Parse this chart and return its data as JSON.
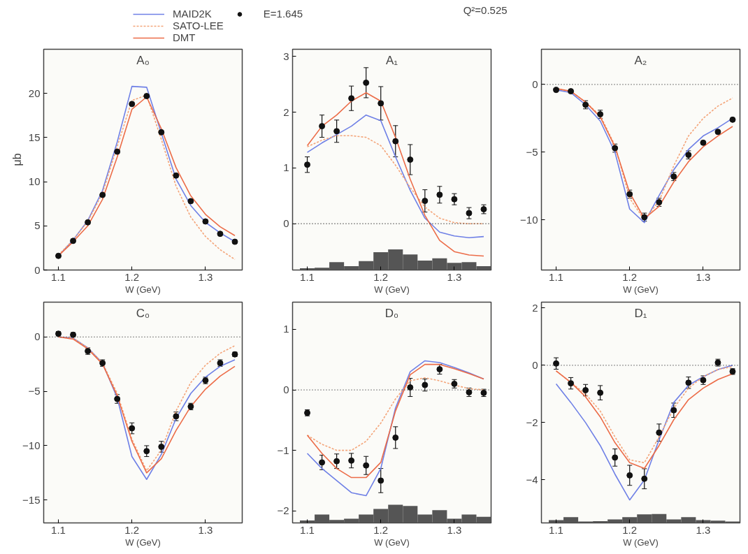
{
  "chart_data": [
    {
      "type": "line",
      "title": "A₀",
      "ylabel": "μb",
      "xlabel": "W (GeV)",
      "legend": "top",
      "annotations": [
        "Q²=0.525"
      ],
      "x": [
        1.1,
        1.12,
        1.14,
        1.16,
        1.18,
        1.2,
        1.22,
        1.24,
        1.26,
        1.28,
        1.3,
        1.32,
        1.34
      ],
      "xlim": [
        1.08,
        1.35
      ],
      "xticks": [
        1.1,
        1.2,
        1.3
      ],
      "ylim": [
        0,
        25
      ],
      "yticks": [
        0,
        5,
        10,
        15,
        20
      ],
      "grid": false,
      "series": [
        {
          "name": "MAID2K",
          "color": "#6f80e6",
          "line_style": "solid",
          "values": [
            1.6,
            3.4,
            5.6,
            9.0,
            14.5,
            20.8,
            20.7,
            15.5,
            10.3,
            7.3,
            5.4,
            4.2,
            3.2
          ]
        },
        {
          "name": "SATO-LEE",
          "color": "#f4a57a",
          "line_style": "dashed",
          "values": [
            1.7,
            3.4,
            5.5,
            8.7,
            14.0,
            19.2,
            19.8,
            14.8,
            9.5,
            6.0,
            3.8,
            2.3,
            1.2
          ]
        },
        {
          "name": "DMT",
          "color": "#ec6c48",
          "line_style": "solid",
          "values": [
            1.6,
            3.2,
            5.0,
            8.0,
            12.8,
            18.2,
            19.6,
            16.0,
            11.6,
            8.4,
            6.3,
            4.9,
            3.9
          ]
        },
        {
          "type": "scatter",
          "name": "E=1.645",
          "color": "#111111",
          "marker": "circle",
          "values": [
            1.6,
            3.3,
            5.4,
            8.5,
            13.4,
            18.8,
            19.7,
            15.6,
            10.7,
            7.8,
            5.5,
            4.1,
            3.2
          ]
        }
      ]
    },
    {
      "type": "line",
      "title": "A₁",
      "xlabel": "W (GeV)",
      "x": [
        1.1,
        1.12,
        1.14,
        1.16,
        1.18,
        1.2,
        1.22,
        1.24,
        1.26,
        1.28,
        1.3,
        1.32,
        1.34
      ],
      "xlim": [
        1.08,
        1.35
      ],
      "xticks": [
        1.1,
        1.2,
        1.3
      ],
      "ylim": [
        -0.83,
        3.13
      ],
      "yticks": [
        0,
        1,
        2,
        3
      ],
      "grid": false,
      "ref_lines": [
        {
          "axis": "y",
          "value": 0,
          "line_style": "dotted",
          "color": "#333333"
        }
      ],
      "series": [
        {
          "color": "#6f80e6",
          "line_style": "solid",
          "values": [
            1.28,
            1.45,
            1.6,
            1.75,
            1.95,
            1.85,
            1.2,
            0.6,
            0.1,
            -0.15,
            -0.22,
            -0.25,
            -0.23
          ]
        },
        {
          "color": "#f4a57a",
          "line_style": "dashed",
          "values": [
            1.38,
            1.5,
            1.58,
            1.58,
            1.55,
            1.4,
            1.05,
            0.65,
            0.3,
            0.1,
            0.02,
            0.0,
            0.0
          ]
        },
        {
          "color": "#ec6c48",
          "line_style": "solid",
          "values": [
            1.4,
            1.75,
            1.95,
            2.2,
            2.35,
            2.2,
            1.55,
            0.8,
            0.15,
            -0.3,
            -0.5,
            -0.56,
            -0.58
          ]
        },
        {
          "type": "scatter",
          "color": "#111111",
          "marker": "circle",
          "values": [
            1.06,
            1.75,
            1.66,
            2.25,
            2.53,
            2.16,
            1.48,
            1.15,
            0.41,
            0.52,
            0.44,
            0.19,
            0.26
          ],
          "errors": [
            0.14,
            0.2,
            0.2,
            0.22,
            0.27,
            0.3,
            0.28,
            0.27,
            0.2,
            0.15,
            0.1,
            0.1,
            0.08
          ]
        },
        {
          "type": "bar",
          "color": "#555555",
          "base": [
            -0.83,
            -0.83,
            -0.83,
            -0.83,
            -0.83,
            -0.83,
            -0.83,
            -0.83,
            -0.83,
            -0.83,
            -0.83,
            -0.83,
            -0.83
          ],
          "values": [
            0.03,
            0.04,
            0.14,
            0.07,
            0.16,
            0.32,
            0.37,
            0.28,
            0.17,
            0.21,
            0.13,
            0.14,
            0.07
          ]
        }
      ]
    },
    {
      "type": "line",
      "title": "A₂",
      "xlabel": "W (GeV)",
      "x": [
        1.1,
        1.12,
        1.14,
        1.16,
        1.18,
        1.2,
        1.22,
        1.24,
        1.26,
        1.28,
        1.3,
        1.32,
        1.34
      ],
      "xlim": [
        1.08,
        1.35
      ],
      "xticks": [
        1.1,
        1.2,
        1.3
      ],
      "ylim": [
        -13.7,
        2.6
      ],
      "yticks": [
        -10,
        -5,
        0
      ],
      "grid": false,
      "ref_lines": [
        {
          "axis": "y",
          "value": 0,
          "line_style": "dotted",
          "color": "#333333"
        }
      ],
      "series": [
        {
          "color": "#6f80e6",
          "line_style": "solid",
          "values": [
            -0.4,
            -0.6,
            -1.5,
            -2.7,
            -5.0,
            -9.2,
            -10.2,
            -8.2,
            -6.3,
            -4.8,
            -3.8,
            -3.2,
            -2.5
          ]
        },
        {
          "color": "#f4a57a",
          "line_style": "dashed",
          "values": [
            -0.3,
            -0.5,
            -1.3,
            -2.3,
            -4.5,
            -8.4,
            -10.0,
            -8.6,
            -6.0,
            -3.8,
            -2.5,
            -1.6,
            -1.0
          ]
        },
        {
          "color": "#ec6c48",
          "line_style": "solid",
          "values": [
            -0.3,
            -0.5,
            -1.3,
            -2.4,
            -4.6,
            -8.0,
            -9.9,
            -9.0,
            -7.2,
            -5.7,
            -4.6,
            -3.8,
            -3.1
          ]
        },
        {
          "type": "scatter",
          "color": "#111111",
          "marker": "circle",
          "values": [
            -0.4,
            -0.5,
            -1.5,
            -2.2,
            -4.7,
            -8.1,
            -9.8,
            -8.7,
            -6.8,
            -5.2,
            -4.3,
            -3.5,
            -2.6
          ],
          "errors": [
            null,
            null,
            0.3,
            0.3,
            0.3,
            0.3,
            0.3,
            0.3,
            0.3,
            0.3,
            null,
            null,
            null
          ]
        }
      ]
    },
    {
      "type": "line",
      "title": "C₀",
      "xlabel": "W (GeV)",
      "x": [
        1.1,
        1.12,
        1.14,
        1.16,
        1.18,
        1.2,
        1.22,
        1.24,
        1.26,
        1.28,
        1.3,
        1.32,
        1.34
      ],
      "xlim": [
        1.08,
        1.35
      ],
      "xticks": [
        1.1,
        1.2,
        1.3
      ],
      "ylim": [
        -17.1,
        3.2
      ],
      "yticks": [
        -15,
        -10,
        -5,
        0
      ],
      "grid": false,
      "ref_lines": [
        {
          "axis": "y",
          "value": 0,
          "line_style": "dotted",
          "color": "#333333"
        }
      ],
      "series": [
        {
          "color": "#6f80e6",
          "line_style": "solid",
          "values": [
            0.0,
            -0.1,
            -1.0,
            -2.4,
            -5.6,
            -11.0,
            -13.1,
            -10.8,
            -7.5,
            -5.2,
            -3.7,
            -2.7,
            -2.1
          ]
        },
        {
          "color": "#f4a57a",
          "line_style": "dashed",
          "values": [
            0.0,
            -0.1,
            -1.0,
            -2.4,
            -5.2,
            -9.4,
            -12.3,
            -10.4,
            -6.8,
            -4.2,
            -2.6,
            -1.5,
            -0.8
          ]
        },
        {
          "color": "#ec6c48",
          "line_style": "solid",
          "values": [
            0.0,
            -0.2,
            -1.1,
            -2.5,
            -5.4,
            -9.6,
            -12.5,
            -11.2,
            -8.6,
            -6.4,
            -4.8,
            -3.6,
            -2.7
          ]
        },
        {
          "type": "scatter",
          "color": "#111111",
          "marker": "circle",
          "values": [
            0.3,
            0.2,
            -1.3,
            -2.4,
            -5.7,
            -8.4,
            -10.5,
            -10.1,
            -7.3,
            -6.4,
            -4.0,
            -2.4,
            -1.6
          ],
          "errors": [
            0.2,
            0.2,
            0.3,
            0.3,
            0.4,
            0.5,
            0.5,
            0.5,
            0.4,
            0.3,
            0.3,
            0.3,
            0.2
          ]
        }
      ]
    },
    {
      "type": "line",
      "title": "D₀",
      "xlabel": "W (GeV)",
      "x": [
        1.1,
        1.12,
        1.14,
        1.16,
        1.18,
        1.2,
        1.22,
        1.24,
        1.26,
        1.28,
        1.3,
        1.32,
        1.34
      ],
      "xlim": [
        1.08,
        1.35
      ],
      "xticks": [
        1.1,
        1.2,
        1.3
      ],
      "ylim": [
        -2.2,
        1.45
      ],
      "yticks": [
        -2,
        -1,
        0,
        1
      ],
      "grid": false,
      "ref_lines": [
        {
          "axis": "y",
          "value": 0,
          "line_style": "dotted",
          "color": "#333333"
        }
      ],
      "series": [
        {
          "color": "#6f80e6",
          "line_style": "solid",
          "values": [
            -1.05,
            -1.3,
            -1.5,
            -1.7,
            -1.75,
            -1.3,
            -0.3,
            0.3,
            0.48,
            0.45,
            0.37,
            0.28,
            0.18
          ]
        },
        {
          "color": "#f4a57a",
          "line_style": "dashed",
          "values": [
            -0.75,
            -0.9,
            -1.0,
            -1.0,
            -0.85,
            -0.55,
            -0.15,
            0.15,
            0.2,
            0.15,
            0.08,
            0.02,
            0.0
          ]
        },
        {
          "color": "#ec6c48",
          "line_style": "solid",
          "values": [
            -0.75,
            -1.05,
            -1.3,
            -1.45,
            -1.45,
            -1.2,
            -0.35,
            0.25,
            0.42,
            0.42,
            0.35,
            0.27,
            0.18
          ]
        },
        {
          "type": "scatter",
          "color": "#111111",
          "marker": "circle",
          "values": [
            -0.38,
            -1.2,
            -1.18,
            -1.17,
            -1.25,
            -1.5,
            -0.79,
            0.04,
            0.08,
            0.34,
            0.1,
            -0.04,
            -0.05
          ],
          "errors": [
            0.05,
            0.12,
            0.12,
            0.12,
            0.15,
            0.2,
            0.18,
            0.15,
            0.1,
            0.08,
            0.07,
            0.07,
            0.06
          ]
        },
        {
          "type": "bar",
          "color": "#555555",
          "base": [
            -2.2,
            -2.2,
            -2.2,
            -2.2,
            -2.2,
            -2.2,
            -2.2,
            -2.2,
            -2.2,
            -2.2,
            -2.2,
            -2.2,
            -2.2
          ],
          "values": [
            0.04,
            0.14,
            0.05,
            0.07,
            0.14,
            0.23,
            0.3,
            0.28,
            0.14,
            0.21,
            0.07,
            0.14,
            0.1
          ]
        }
      ]
    },
    {
      "type": "line",
      "title": "D₁",
      "xlabel": "W (GeV)",
      "x": [
        1.1,
        1.12,
        1.14,
        1.16,
        1.18,
        1.2,
        1.22,
        1.24,
        1.26,
        1.28,
        1.3,
        1.32,
        1.34
      ],
      "xlim": [
        1.08,
        1.35
      ],
      "xticks": [
        1.1,
        1.2,
        1.3
      ],
      "ylim": [
        -5.5,
        2.2
      ],
      "yticks": [
        -4,
        -2,
        0,
        2
      ],
      "grid": false,
      "ref_lines": [
        {
          "axis": "y",
          "value": 0,
          "line_style": "dotted",
          "color": "#333333"
        }
      ],
      "series": [
        {
          "color": "#6f80e6",
          "line_style": "solid",
          "values": [
            -0.65,
            -1.3,
            -2.0,
            -2.8,
            -3.8,
            -4.7,
            -4.0,
            -2.6,
            -1.3,
            -0.7,
            -0.4,
            -0.15,
            0.0
          ]
        },
        {
          "color": "#f4a57a",
          "line_style": "dashed",
          "values": [
            -0.2,
            -0.6,
            -1.0,
            -1.6,
            -2.5,
            -3.3,
            -3.4,
            -2.5,
            -1.5,
            -0.8,
            -0.4,
            -0.15,
            -0.05
          ]
        },
        {
          "color": "#ec6c48",
          "line_style": "solid",
          "values": [
            -0.2,
            -0.6,
            -1.1,
            -1.8,
            -2.7,
            -3.4,
            -3.6,
            -2.8,
            -1.9,
            -1.2,
            -0.8,
            -0.5,
            -0.3
          ]
        },
        {
          "type": "scatter",
          "color": "#111111",
          "marker": "circle",
          "values": [
            0.06,
            -0.63,
            -0.87,
            -0.96,
            -3.22,
            -3.84,
            -3.96,
            -2.35,
            -1.57,
            -0.61,
            -0.52,
            0.09,
            -0.22
          ],
          "errors": [
            0.2,
            0.2,
            0.2,
            0.25,
            0.3,
            0.35,
            0.35,
            0.3,
            0.25,
            0.2,
            0.15,
            0.12,
            0.1
          ]
        },
        {
          "type": "bar",
          "color": "#555555",
          "base": [
            -5.5,
            -5.5,
            -5.5,
            -5.5,
            -5.5,
            -5.5,
            -5.5,
            -5.5,
            -5.5,
            -5.5,
            -5.5,
            -5.5,
            -5.5
          ],
          "values": [
            0.1,
            0.2,
            0.05,
            0.06,
            0.12,
            0.2,
            0.3,
            0.31,
            0.12,
            0.2,
            0.1,
            0.08,
            0.05
          ]
        }
      ]
    }
  ]
}
